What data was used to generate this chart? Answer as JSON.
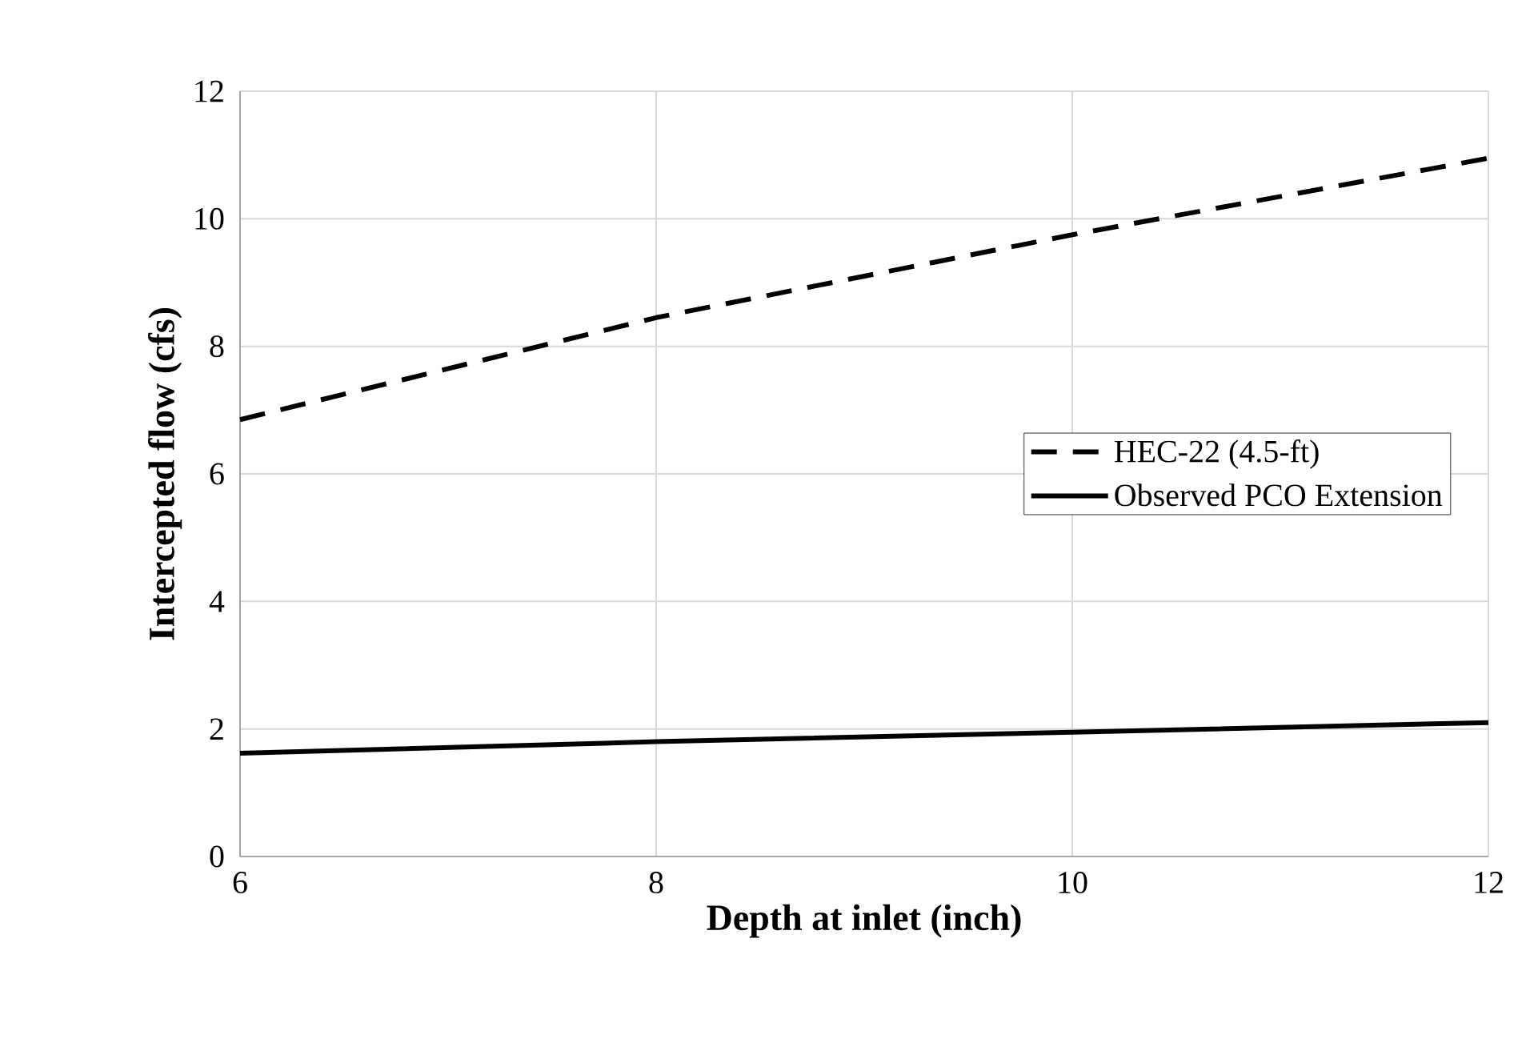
{
  "chart_data": {
    "type": "line",
    "xlabel": "Depth at inlet (inch)",
    "ylabel": "Intercepted flow (cfs)",
    "x": [
      6,
      8,
      10,
      12
    ],
    "series": [
      {
        "name": "HEC-22 (4.5-ft)",
        "color": "#000000",
        "line_style": "dashed",
        "values": [
          6.85,
          8.45,
          9.75,
          10.95
        ]
      },
      {
        "name": "Observed PCO Extension",
        "color": "#000000",
        "line_style": "solid",
        "values": [
          1.62,
          1.8,
          1.95,
          2.1
        ]
      }
    ],
    "xlim": [
      6,
      12
    ],
    "ylim": [
      0,
      12
    ],
    "xticks": [
      6,
      8,
      10,
      12
    ],
    "yticks": [
      0,
      2,
      4,
      6,
      8,
      10,
      12
    ],
    "grid": true,
    "legend": "right"
  }
}
